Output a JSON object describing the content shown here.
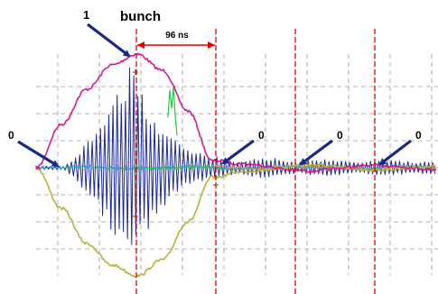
{
  "chart_data": {
    "type": "line",
    "title": "",
    "annotations": {
      "bunch_number": "1",
      "bunch_label": "bunch",
      "interval_label": "96 ns",
      "zero_labels": [
        "0",
        "0",
        "0",
        "0"
      ]
    },
    "grid": true,
    "colors": {
      "grid": "#9a9a9a",
      "marker": "#e00000",
      "arrow": "#1a2a80",
      "bunch_signal": "#1c2a9c",
      "magenta_trace": "#d41c8c",
      "olive_trace": "#b4b43a",
      "green_trace": "#22cc44",
      "cyan_trace": "#22a6c0",
      "orange_trace": "#e09020"
    },
    "series": [
      {
        "values": [
          0,
          1.6,
          2.9,
          3.8,
          4.2,
          3.6,
          2.1,
          0.2,
          0,
          0,
          0
        ]
      },
      {
        "values": [
          0,
          -1.5,
          -2.8,
          -3.6,
          -4.0,
          -3.4,
          -2.0,
          -0.3,
          0,
          0,
          0
        ]
      }
    ]
  }
}
